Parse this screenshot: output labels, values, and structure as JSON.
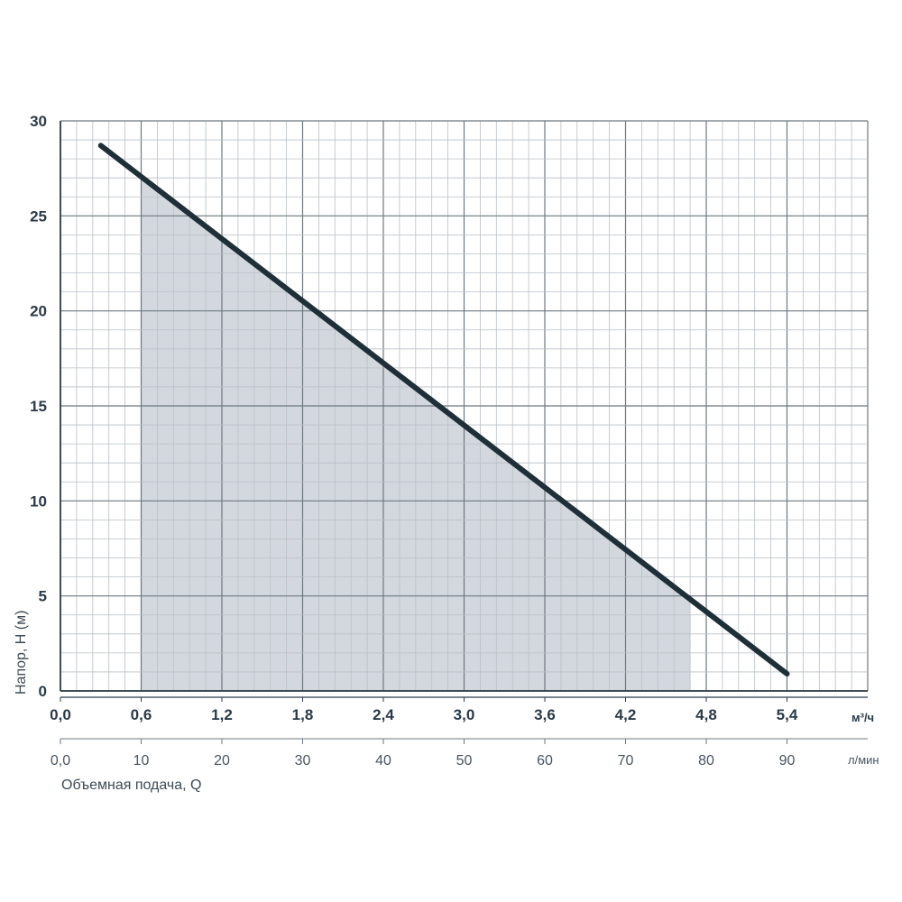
{
  "chart_data": {
    "type": "line",
    "x": [
      0.3,
      5.4
    ],
    "series": [
      {
        "values": [
          28.7,
          0.9
        ]
      }
    ],
    "shaded_range": {
      "x": [
        0.6,
        4.68
      ]
    },
    "xlim": [
      0,
      6.0
    ],
    "ylim": [
      0,
      30
    ],
    "grid": true,
    "y_ticks": [
      "0",
      "5",
      "10",
      "15",
      "20",
      "25",
      "30"
    ],
    "x_ticks_primary": [
      "0,0",
      "0,6",
      "1,2",
      "1,8",
      "2,4",
      "3,0",
      "3,6",
      "4,2",
      "4,8",
      "5,4"
    ],
    "x_unit_primary": "м³/ч",
    "x_ticks_secondary": [
      "0,0",
      "10",
      "20",
      "30",
      "40",
      "50",
      "60",
      "70",
      "80",
      "90"
    ],
    "x_unit_secondary": "л/мин",
    "ylabel": "Напор, H (м)",
    "xlabel": "Объемная подача, Q",
    "colors": {
      "line": "#1f2f38",
      "shade": "#d3d8de",
      "grid_minor": "#b9c0c7",
      "grid_major": "#6e7880",
      "axis": "#2b3a48"
    }
  }
}
